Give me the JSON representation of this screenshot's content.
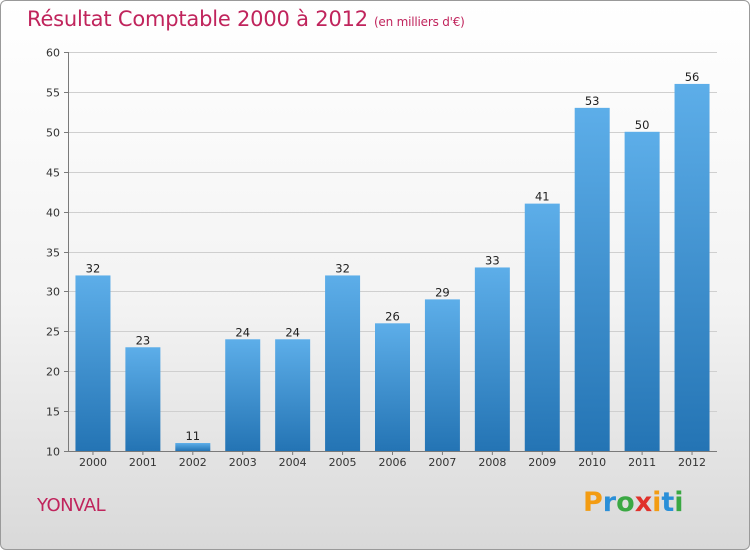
{
  "title": "Résultat Comptable 2000 à 2012",
  "subtitle": "(en milliers d'€)",
  "commune": "YONVAL",
  "logo": {
    "text": "Proxiti",
    "letters": [
      {
        "ch": "P",
        "color": "#f39c12"
      },
      {
        "ch": "r",
        "color": "#2a8fd8"
      },
      {
        "ch": "o",
        "color": "#3aa843"
      },
      {
        "ch": "x",
        "color": "#e0312b"
      },
      {
        "ch": "i",
        "color": "#f39c12"
      },
      {
        "ch": "t",
        "color": "#2a8fd8"
      },
      {
        "ch": "i",
        "color": "#3aa843"
      }
    ]
  },
  "colors": {
    "title": "#c0245c",
    "bar_top": "#5daee9",
    "bar_bottom": "#2474b4",
    "grid": "#cfcfcf",
    "axis": "#7a7a7a"
  },
  "chart_data": {
    "type": "bar",
    "title": "Résultat Comptable 2000 à 2012",
    "subtitle": "(en milliers d'€)",
    "categories": [
      "2000",
      "2001",
      "2002",
      "2003",
      "2004",
      "2005",
      "2006",
      "2007",
      "2008",
      "2009",
      "2010",
      "2011",
      "2012"
    ],
    "values": [
      32,
      23,
      11,
      24,
      24,
      32,
      26,
      29,
      33,
      41,
      53,
      50,
      56
    ],
    "xlabel": "",
    "ylabel": "",
    "ylim": [
      10,
      60
    ],
    "yticks": [
      10,
      15,
      20,
      25,
      30,
      35,
      40,
      45,
      50,
      55,
      60
    ],
    "grid": true,
    "data_labels": true
  }
}
